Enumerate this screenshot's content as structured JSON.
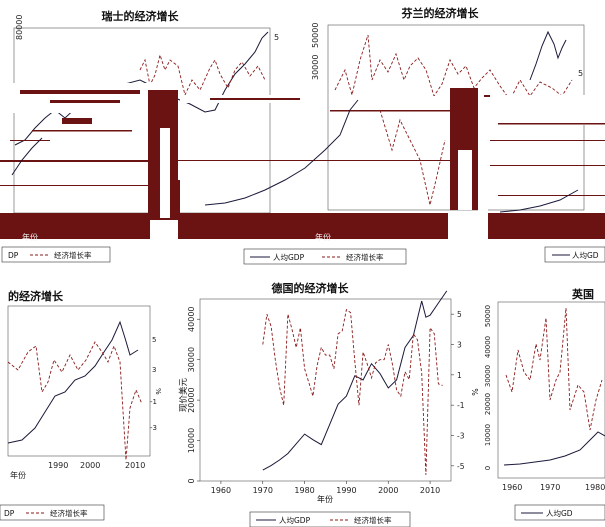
{
  "panels": {
    "swiss": {
      "title": "瑞士的经济增长"
    },
    "finland": {
      "title": "芬兰的经济增长"
    },
    "left_mid": {
      "title": "的经济增长",
      "xlabel": "年份"
    },
    "germany": {
      "title": "德国的经济增长",
      "ylabel": "现价美元",
      "y2label": "%",
      "xlabel": "年份"
    },
    "uk": {
      "title": "英国"
    },
    "top_mid": {
      "xlabel": "年份"
    },
    "top_left": {
      "xlabel": "年份"
    }
  },
  "legend": {
    "gdp_label": "人均GDP",
    "growth_label": "经济增长率",
    "gdp_label_short": "DP",
    "gdp_label_right": "人均GD"
  },
  "colors": {
    "gdp": "#1a1a3a",
    "growth": "#8b1a1a",
    "glitch": "#6b1212"
  },
  "chart_data": [
    {
      "type": "line",
      "title": "德国的经济增长",
      "xlabel": "年份",
      "ylabel": "现价美元",
      "y2label": "%",
      "xlim": [
        1955,
        2015
      ],
      "ylim": [
        0,
        45000
      ],
      "y2lim": [
        -6,
        6
      ],
      "xticks": [
        1960,
        1970,
        1980,
        1990,
        2000,
        2010
      ],
      "yticks": [
        0,
        10000,
        20000,
        30000,
        40000
      ],
      "y2ticks": [
        -5,
        -3,
        -1,
        1,
        3,
        5
      ],
      "legend_position": "bottom",
      "series": [
        {
          "name": "人均GDP",
          "axis": "left",
          "x": [
            1970,
            1972,
            1974,
            1976,
            1978,
            1980,
            1982,
            1984,
            1986,
            1988,
            1990,
            1992,
            1994,
            1996,
            1998,
            2000,
            2002,
            2004,
            2006,
            2008,
            2009,
            2010,
            2012,
            2014
          ],
          "values": [
            2700,
            3800,
            5200,
            6800,
            9200,
            11600,
            10200,
            9000,
            14000,
            19000,
            21000,
            26000,
            25000,
            29000,
            26600,
            23000,
            25000,
            33000,
            36000,
            44500,
            40500,
            41000,
            44000,
            47000
          ]
        },
        {
          "name": "经济增长率",
          "axis": "right",
          "x": [
            1970,
            1971,
            1972,
            1973,
            1974,
            1975,
            1976,
            1977,
            1978,
            1979,
            1980,
            1981,
            1982,
            1983,
            1984,
            1985,
            1986,
            1987,
            1988,
            1989,
            1990,
            1991,
            1992,
            1993,
            1994,
            1995,
            1996,
            1997,
            1998,
            1999,
            2000,
            2001,
            2002,
            2003,
            2004,
            2005,
            2006,
            2007,
            2008,
            2009,
            2010,
            2011,
            2012,
            2013
          ],
          "values": [
            3.0,
            5.0,
            4.2,
            2.0,
            0.2,
            -1.0,
            5.0,
            4.0,
            2.8,
            4.1,
            1.4,
            0.5,
            -0.4,
            1.6,
            2.8,
            2.3,
            2.3,
            1.4,
            3.7,
            3.9,
            5.3,
            5.1,
            1.9,
            -1.0,
            2.5,
            1.7,
            0.8,
            1.8,
            2.0,
            2.0,
            3.0,
            1.7,
            0.0,
            -0.4,
            1.2,
            0.7,
            3.7,
            3.3,
            1.1,
            -5.6,
            4.1,
            3.7,
            0.4,
            0.3
          ]
        }
      ]
    }
  ]
}
